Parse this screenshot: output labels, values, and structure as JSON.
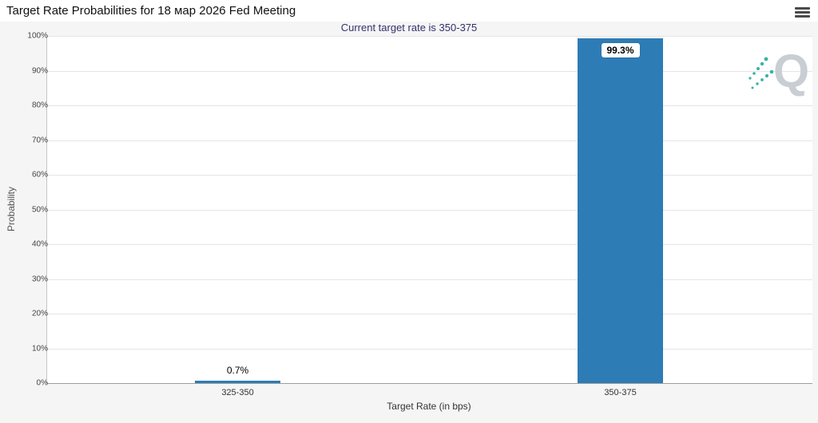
{
  "header": {
    "menu_icon_glyph": "≡"
  },
  "watermark": {
    "letter": "Q"
  },
  "chart_data": {
    "type": "bar",
    "title": "Target Rate Probabilities for 18 мар 2026 Fed Meeting",
    "subtitle": "Current target rate is 350-375",
    "xlabel": "Target Rate (in bps)",
    "ylabel": "Probability",
    "ylim": [
      0,
      100
    ],
    "ytick_step": 10,
    "ytick_labels": [
      "0%",
      "10%",
      "20%",
      "30%",
      "40%",
      "50%",
      "60%",
      "70%",
      "80%",
      "90%",
      "100%"
    ],
    "categories": [
      "325-350",
      "350-375"
    ],
    "values": [
      0.7,
      99.3
    ],
    "points": [
      {
        "category": "325-350",
        "value": 0.7,
        "label": "0.7%",
        "label_placement": "above"
      },
      {
        "category": "350-375",
        "value": 99.3,
        "label": "99.3%",
        "label_placement": "inside-top"
      }
    ],
    "grid": true,
    "legend": "none",
    "colors": {
      "bar": "#2e7cb5",
      "subtitle": "#31316e",
      "gridline": "#e5e5e5",
      "plot_background": "#ffffff",
      "page_background": "#f5f5f5",
      "logo_gray": "#c8ced3",
      "logo_teal": "#38b2aa"
    }
  }
}
